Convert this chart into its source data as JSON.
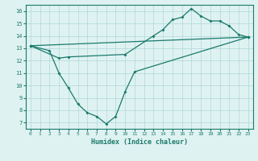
{
  "line1_x": [
    0,
    2,
    3,
    4,
    5,
    6,
    7,
    8,
    9,
    10,
    11,
    23
  ],
  "line1_y": [
    13.2,
    12.8,
    11.0,
    9.8,
    8.5,
    7.8,
    7.5,
    6.9,
    7.5,
    9.5,
    11.1,
    13.9
  ],
  "line2_x": [
    0,
    3,
    4,
    10,
    13,
    14,
    15,
    16,
    17,
    18,
    19,
    20,
    21,
    22,
    23
  ],
  "line2_y": [
    13.2,
    12.2,
    12.3,
    12.5,
    14.0,
    14.5,
    15.3,
    15.5,
    16.2,
    15.6,
    15.2,
    15.2,
    14.8,
    14.1,
    13.9
  ],
  "line3_x": [
    0,
    23
  ],
  "line3_y": [
    13.2,
    13.9
  ],
  "xlabel": "Humidex (Indice chaleur)",
  "xlim": [
    -0.5,
    23.5
  ],
  "ylim": [
    6.5,
    16.5
  ],
  "yticks": [
    7,
    8,
    9,
    10,
    11,
    12,
    13,
    14,
    15,
    16
  ],
  "xticks": [
    0,
    1,
    2,
    3,
    4,
    5,
    6,
    7,
    8,
    9,
    10,
    11,
    12,
    13,
    14,
    15,
    16,
    17,
    18,
    19,
    20,
    21,
    22,
    23
  ],
  "background_color": "#dff2f2",
  "grid_color": "#afd8d8",
  "line_color": "#1a7a6a"
}
